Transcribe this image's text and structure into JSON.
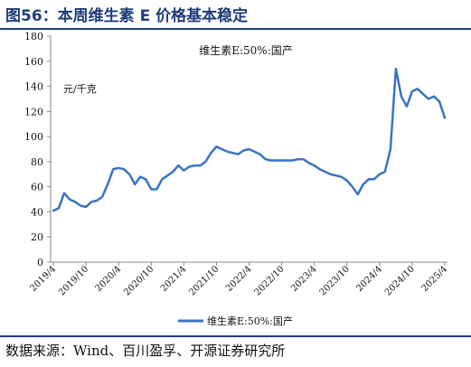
{
  "title": "图56：本周维生素 E 价格基本稳定",
  "source": "数据来源：Wind、百川盈孚、开源证券研究所",
  "colors": {
    "line": "#3a73c4",
    "accent": "#1f3d7a",
    "axis": "#888888"
  },
  "chart_data": {
    "type": "line",
    "title": "维生素E:50%:国产",
    "ylabel": "元/千克",
    "ylim": [
      0,
      180
    ],
    "yticks": [
      0,
      20,
      40,
      60,
      80,
      100,
      120,
      140,
      160,
      180
    ],
    "xticks": [
      "2019/4",
      "2019/10",
      "2020/4",
      "2020/10",
      "2021/4",
      "2021/10",
      "2022/4",
      "2022/10",
      "2023/4",
      "2023/10",
      "2024/4",
      "2024/10",
      "2025/4"
    ],
    "legend_position": "bottom",
    "series": [
      {
        "name": "维生素E:50%:国产",
        "x": [
          "2019/4",
          "2019/5",
          "2019/6",
          "2019/7",
          "2019/8",
          "2019/9",
          "2019/10",
          "2019/11",
          "2019/12",
          "2020/1",
          "2020/2",
          "2020/3",
          "2020/4",
          "2020/5",
          "2020/6",
          "2020/7",
          "2020/8",
          "2020/9",
          "2020/10",
          "2020/11",
          "2020/12",
          "2021/1",
          "2021/2",
          "2021/3",
          "2021/4",
          "2021/5",
          "2021/6",
          "2021/7",
          "2021/8",
          "2021/9",
          "2021/10",
          "2021/11",
          "2021/12",
          "2022/1",
          "2022/2",
          "2022/3",
          "2022/4",
          "2022/5",
          "2022/6",
          "2022/7",
          "2022/8",
          "2022/9",
          "2022/10",
          "2022/11",
          "2022/12",
          "2023/1",
          "2023/2",
          "2023/3",
          "2023/4",
          "2023/5",
          "2023/6",
          "2023/7",
          "2023/8",
          "2023/9",
          "2023/10",
          "2023/11",
          "2023/12",
          "2024/1",
          "2024/2",
          "2024/3",
          "2024/4",
          "2024/5",
          "2024/6",
          "2024/7",
          "2024/8",
          "2024/9",
          "2024/10",
          "2024/11",
          "2024/12",
          "2025/1",
          "2025/2",
          "2025/3",
          "2025/4"
        ],
        "values": [
          41,
          43,
          55,
          50,
          48,
          45,
          44,
          48,
          49,
          52,
          62,
          74,
          75,
          74,
          70,
          62,
          68,
          66,
          58,
          58,
          66,
          69,
          72,
          77,
          73,
          76,
          77,
          77,
          80,
          87,
          92,
          90,
          88,
          87,
          86,
          89,
          90,
          88,
          86,
          82,
          81,
          81,
          81,
          81,
          81,
          82,
          82,
          79,
          77,
          74,
          72,
          70,
          69,
          68,
          65,
          60,
          54,
          62,
          66,
          66,
          70,
          72,
          90,
          154,
          132,
          124,
          136,
          138,
          134,
          130,
          132,
          128,
          115
        ]
      }
    ]
  }
}
